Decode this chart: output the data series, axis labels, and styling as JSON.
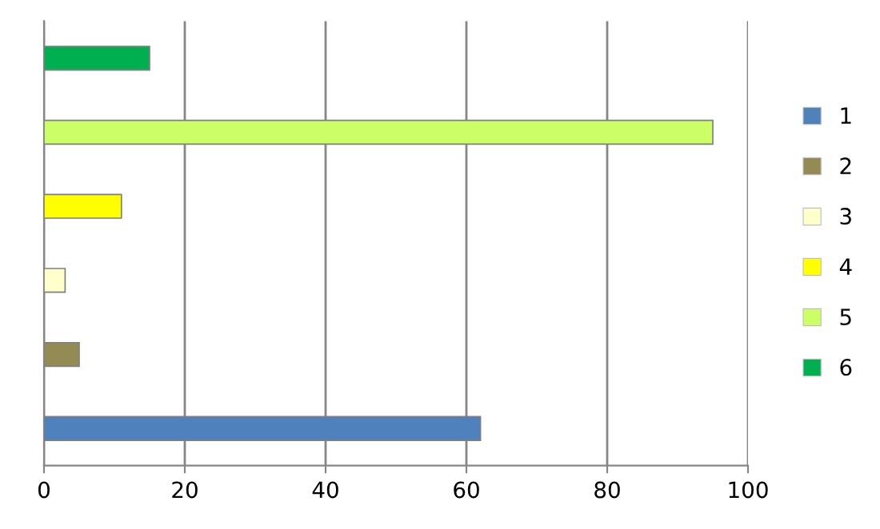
{
  "chart_data": {
    "type": "bar",
    "orientation": "horizontal",
    "categories": [
      null,
      null,
      null,
      null,
      null,
      null
    ],
    "series": [
      {
        "name": "1",
        "color": "#4f81bd",
        "values": [
          null,
          null,
          null,
          null,
          null,
          62
        ]
      },
      {
        "name": "2",
        "color": "#948a54",
        "values": [
          null,
          null,
          null,
          null,
          5,
          null
        ]
      },
      {
        "name": "3",
        "color": "#ffffcc",
        "values": [
          null,
          null,
          null,
          3,
          null,
          null
        ]
      },
      {
        "name": "4",
        "color": "#ffff00",
        "values": [
          null,
          null,
          11,
          null,
          null,
          null
        ]
      },
      {
        "name": "5",
        "color": "#ccff66",
        "values": [
          null,
          95,
          null,
          null,
          null,
          null
        ]
      },
      {
        "name": "6",
        "color": "#00b050",
        "values": [
          15,
          null,
          null,
          null,
          null,
          null
        ]
      }
    ],
    "xlim": [
      0,
      100
    ],
    "xticks": [
      0,
      20,
      40,
      60,
      80,
      100
    ],
    "grid": "x",
    "legend": "right"
  }
}
